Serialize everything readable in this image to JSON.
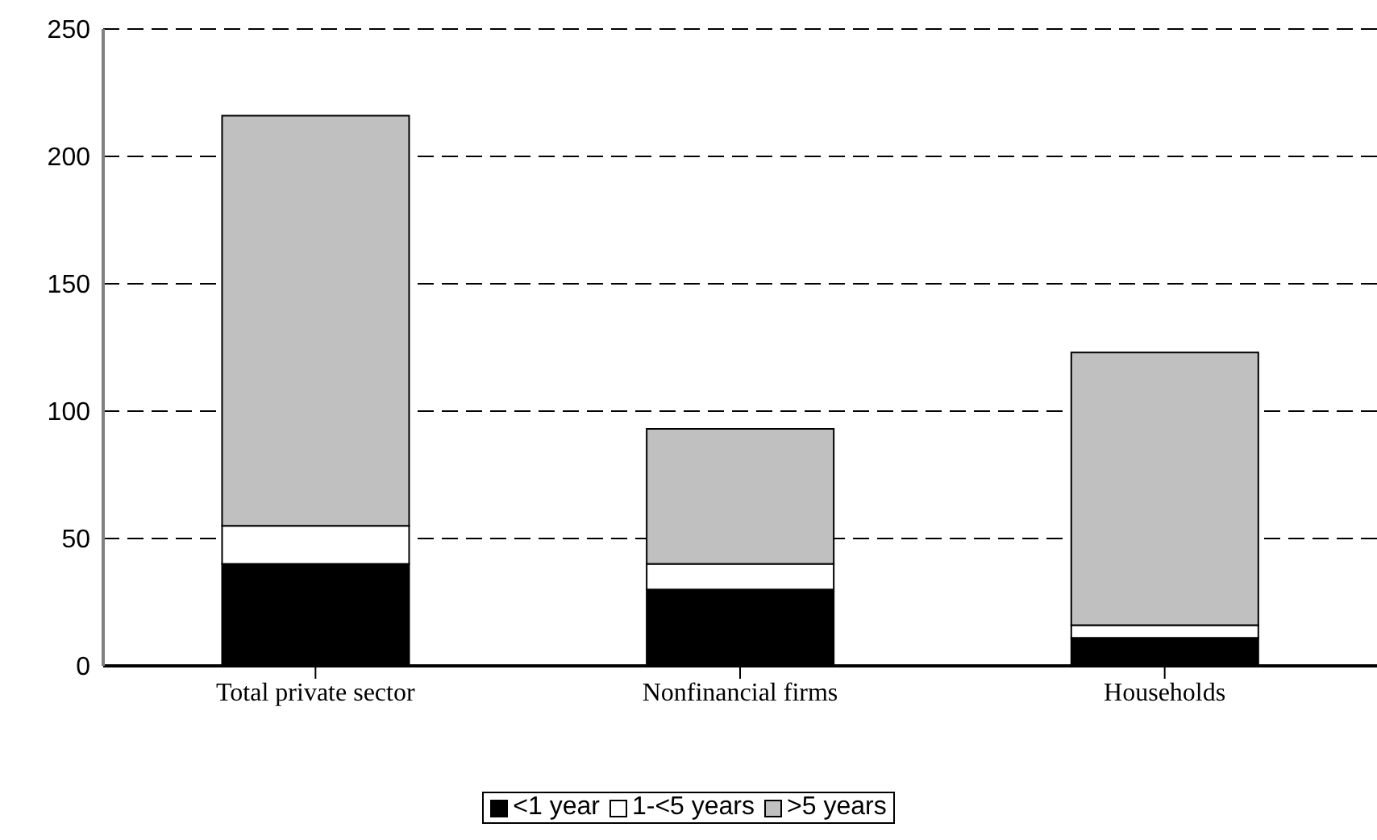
{
  "chart_data": {
    "type": "bar",
    "stacked": true,
    "categories": [
      "Total private sector",
      "Nonfinancial firms",
      "Households"
    ],
    "series": [
      {
        "name": "<1 year",
        "color": "#000000",
        "values": [
          40,
          30,
          11
        ]
      },
      {
        "name": "1-<5 years",
        "color": "#ffffff",
        "values": [
          15,
          10,
          5
        ]
      },
      {
        "name": ">5 years",
        "color": "#c0c0c0",
        "values": [
          161,
          53,
          107
        ]
      }
    ],
    "ylim": [
      0,
      250
    ],
    "yticks": [
      0,
      50,
      100,
      150,
      200,
      250
    ],
    "grid": "y",
    "legend": "bottom"
  }
}
